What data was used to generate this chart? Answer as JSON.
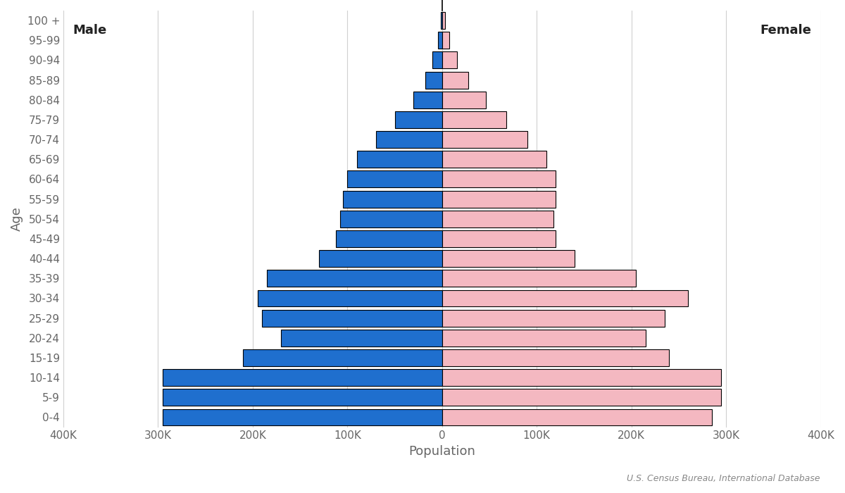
{
  "age_groups": [
    "0-4",
    "5-9",
    "10-14",
    "15-19",
    "20-24",
    "25-29",
    "30-34",
    "35-39",
    "40-44",
    "45-49",
    "50-54",
    "55-59",
    "60-64",
    "65-69",
    "70-74",
    "75-79",
    "80-84",
    "85-89",
    "90-94",
    "95-99",
    "100 +"
  ],
  "male": [
    295000,
    295000,
    295000,
    210000,
    170000,
    190000,
    195000,
    185000,
    130000,
    112000,
    108000,
    105000,
    100000,
    90000,
    70000,
    50000,
    30000,
    18000,
    10000,
    4000,
    1000
  ],
  "female": [
    285000,
    295000,
    295000,
    240000,
    215000,
    235000,
    260000,
    205000,
    140000,
    120000,
    118000,
    120000,
    120000,
    110000,
    90000,
    68000,
    46000,
    28000,
    16000,
    8000,
    3000
  ],
  "male_color": "#1f6fce",
  "female_color": "#f4b8c1",
  "bar_edgecolor": "#000000",
  "bar_linewidth": 0.8,
  "xlabel": "Population",
  "ylabel": "Age",
  "xlim": 400000,
  "male_label": "Male",
  "female_label": "Female",
  "source_text": "U.S. Census Bureau, International Database",
  "bg_color": "#ffffff",
  "gridline_color": "#d0d0d0",
  "tick_label_fontsize": 11,
  "axis_label_fontsize": 13,
  "annotation_fontsize": 13,
  "source_fontsize": 9,
  "tick_positions": [
    -400000,
    -300000,
    -200000,
    -100000,
    0,
    100000,
    200000,
    300000,
    400000
  ],
  "tick_labels": [
    "400K",
    "300K",
    "200K",
    "100K",
    "0",
    "100K",
    "200K",
    "300K",
    "400K"
  ]
}
